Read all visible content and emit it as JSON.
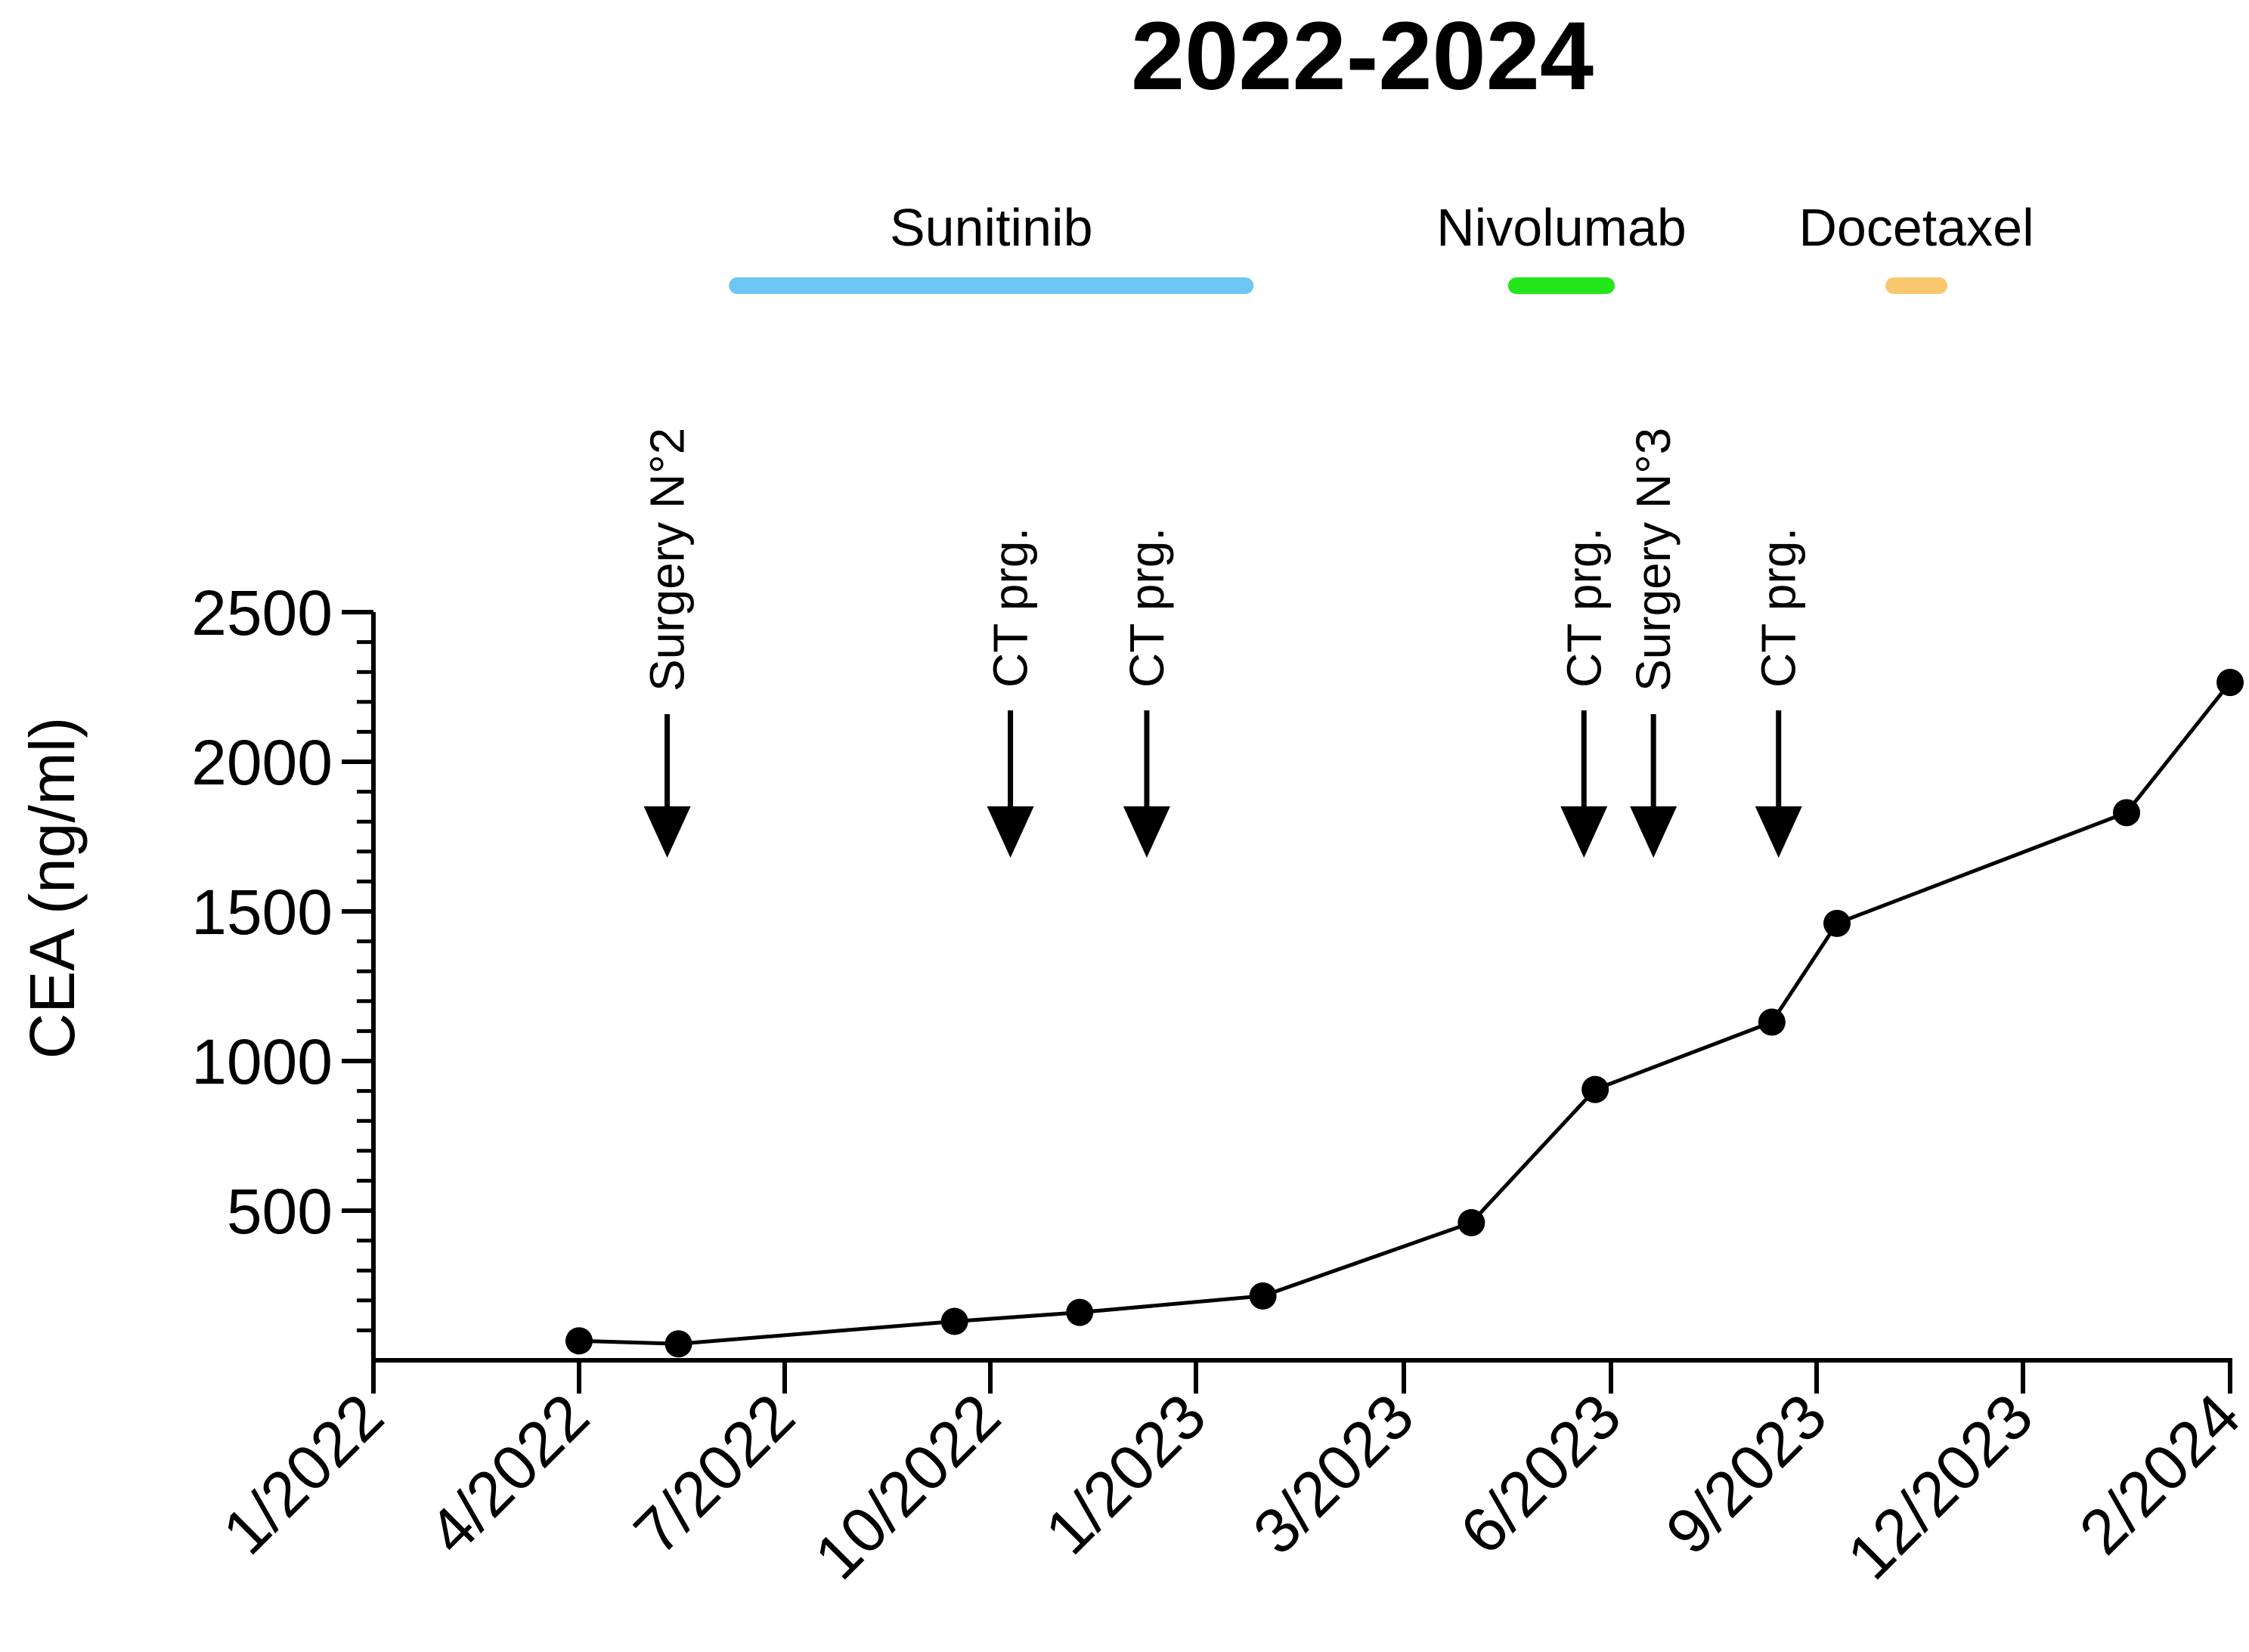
{
  "chart_data": {
    "type": "line",
    "title": "2022-2024",
    "xlabel": "",
    "ylabel": "CEA (ng/ml)",
    "x_tick_labels": [
      "1/2022",
      "4/2022",
      "7/2022",
      "10/2022",
      "1/2023",
      "3/2023",
      "6/2023",
      "9/2023",
      "12/2023",
      "2/2024"
    ],
    "y_ticks": [
      500,
      1000,
      1500,
      2000,
      2500
    ],
    "ylim": [
      0,
      2500
    ],
    "grid": false,
    "legend": "none",
    "series": [
      {
        "points": [
          {
            "x": "2022-04-01",
            "y": 65
          },
          {
            "x": "2022-05-15",
            "y": 55
          },
          {
            "x": "2022-09-15",
            "y": 130
          },
          {
            "x": "2022-11-10",
            "y": 160
          },
          {
            "x": "2023-01-20",
            "y": 215
          },
          {
            "x": "2023-03-31",
            "y": 460
          },
          {
            "x": "2023-05-25",
            "y": 905
          },
          {
            "x": "2023-08-12",
            "y": 1130
          },
          {
            "x": "2023-09-10",
            "y": 1460
          },
          {
            "x": "2024-01-01",
            "y": 1830
          },
          {
            "x": "2024-02-01",
            "y": 2265
          }
        ]
      }
    ],
    "treatments": [
      {
        "label": "Sunitinib",
        "start": "2022-06-10",
        "end": "2023-01-15",
        "color": "#6EC6F5"
      },
      {
        "label": "Nivolumab",
        "start": "2023-04-20",
        "end": "2023-05-30",
        "color": "#22E61A"
      },
      {
        "label": "Docetaxel",
        "start": "2023-10-05",
        "end": "2023-10-25",
        "color": "#F9C86E"
      }
    ],
    "events": [
      {
        "label": "Surgery N°2",
        "date": "2022-05-10"
      },
      {
        "label": "CT prg.",
        "date": "2022-10-10"
      },
      {
        "label": "CT prg.",
        "date": "2022-12-10"
      },
      {
        "label": "CT prg.",
        "date": "2023-05-20"
      },
      {
        "label": "Surgery N°3",
        "date": "2023-06-20"
      },
      {
        "label": "CT prg.",
        "date": "2023-08-15"
      }
    ]
  }
}
